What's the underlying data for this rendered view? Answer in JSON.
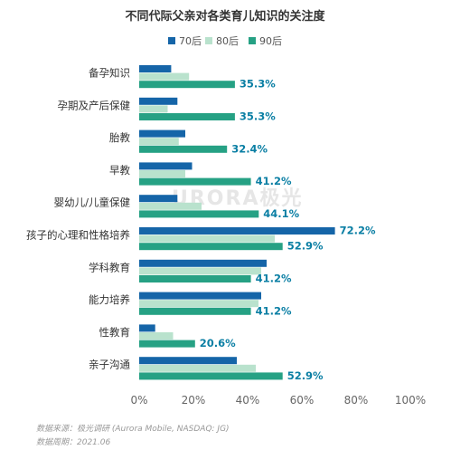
{
  "title": "不同代际父亲对各类育儿知识的关注度",
  "watermark": "URORA极光",
  "footer": {
    "source": "数据来源：极光调研 (Aurora Mobile, NASDAQ: JG)",
    "period": "数据周期：2021.06"
  },
  "colors": {
    "70后": "#1565a8",
    "80后": "#b9e2cd",
    "90后": "#26a184"
  },
  "chart_data": {
    "type": "bar",
    "orientation": "horizontal",
    "title": "不同代际父亲对各类育儿知识的关注度",
    "categories": [
      "备孕知识",
      "孕期及产后保健",
      "胎教",
      "早教",
      "婴幼儿/儿童保健",
      "孩子的心理和性格培养",
      "学科教育",
      "能力培养",
      "性教育",
      "亲子沟通"
    ],
    "series": [
      {
        "name": "70后",
        "values": [
          11.8,
          14.1,
          17.0,
          19.5,
          14.1,
          72.2,
          47.0,
          45.0,
          5.9,
          36.0
        ]
      },
      {
        "name": "80后",
        "values": [
          18.4,
          10.5,
          14.6,
          17.0,
          23.0,
          50.0,
          45.0,
          44.0,
          12.5,
          43.0
        ]
      },
      {
        "name": "90后",
        "values": [
          35.3,
          35.3,
          32.4,
          41.2,
          44.1,
          52.9,
          41.2,
          41.2,
          20.6,
          52.9
        ]
      }
    ],
    "data_labels": [
      {
        "category": "备孕知识",
        "series": "90后",
        "text": "35.3%"
      },
      {
        "category": "孕期及产后保健",
        "series": "90后",
        "text": "35.3%"
      },
      {
        "category": "胎教",
        "series": "90后",
        "text": "32.4%"
      },
      {
        "category": "早教",
        "series": "90后",
        "text": "41.2%"
      },
      {
        "category": "婴幼儿/儿童保健",
        "series": "90后",
        "text": "44.1%"
      },
      {
        "category": "孩子的心理和性格培养",
        "series": "70后",
        "text": "72.2%"
      },
      {
        "category": "孩子的心理和性格培养",
        "series": "90后",
        "text": "52.9%"
      },
      {
        "category": "学科教育",
        "series": "90后",
        "text": "41.2%"
      },
      {
        "category": "能力培养",
        "series": "90后",
        "text": "41.2%"
      },
      {
        "category": "性教育",
        "series": "90后",
        "text": "20.6%"
      },
      {
        "category": "亲子沟通",
        "series": "90后",
        "text": "52.9%"
      }
    ],
    "x_ticks": [
      "0%",
      "20%",
      "40%",
      "60%",
      "80%",
      "100%"
    ],
    "xlim": [
      0,
      100
    ],
    "legend_position": "top",
    "grid": false
  }
}
